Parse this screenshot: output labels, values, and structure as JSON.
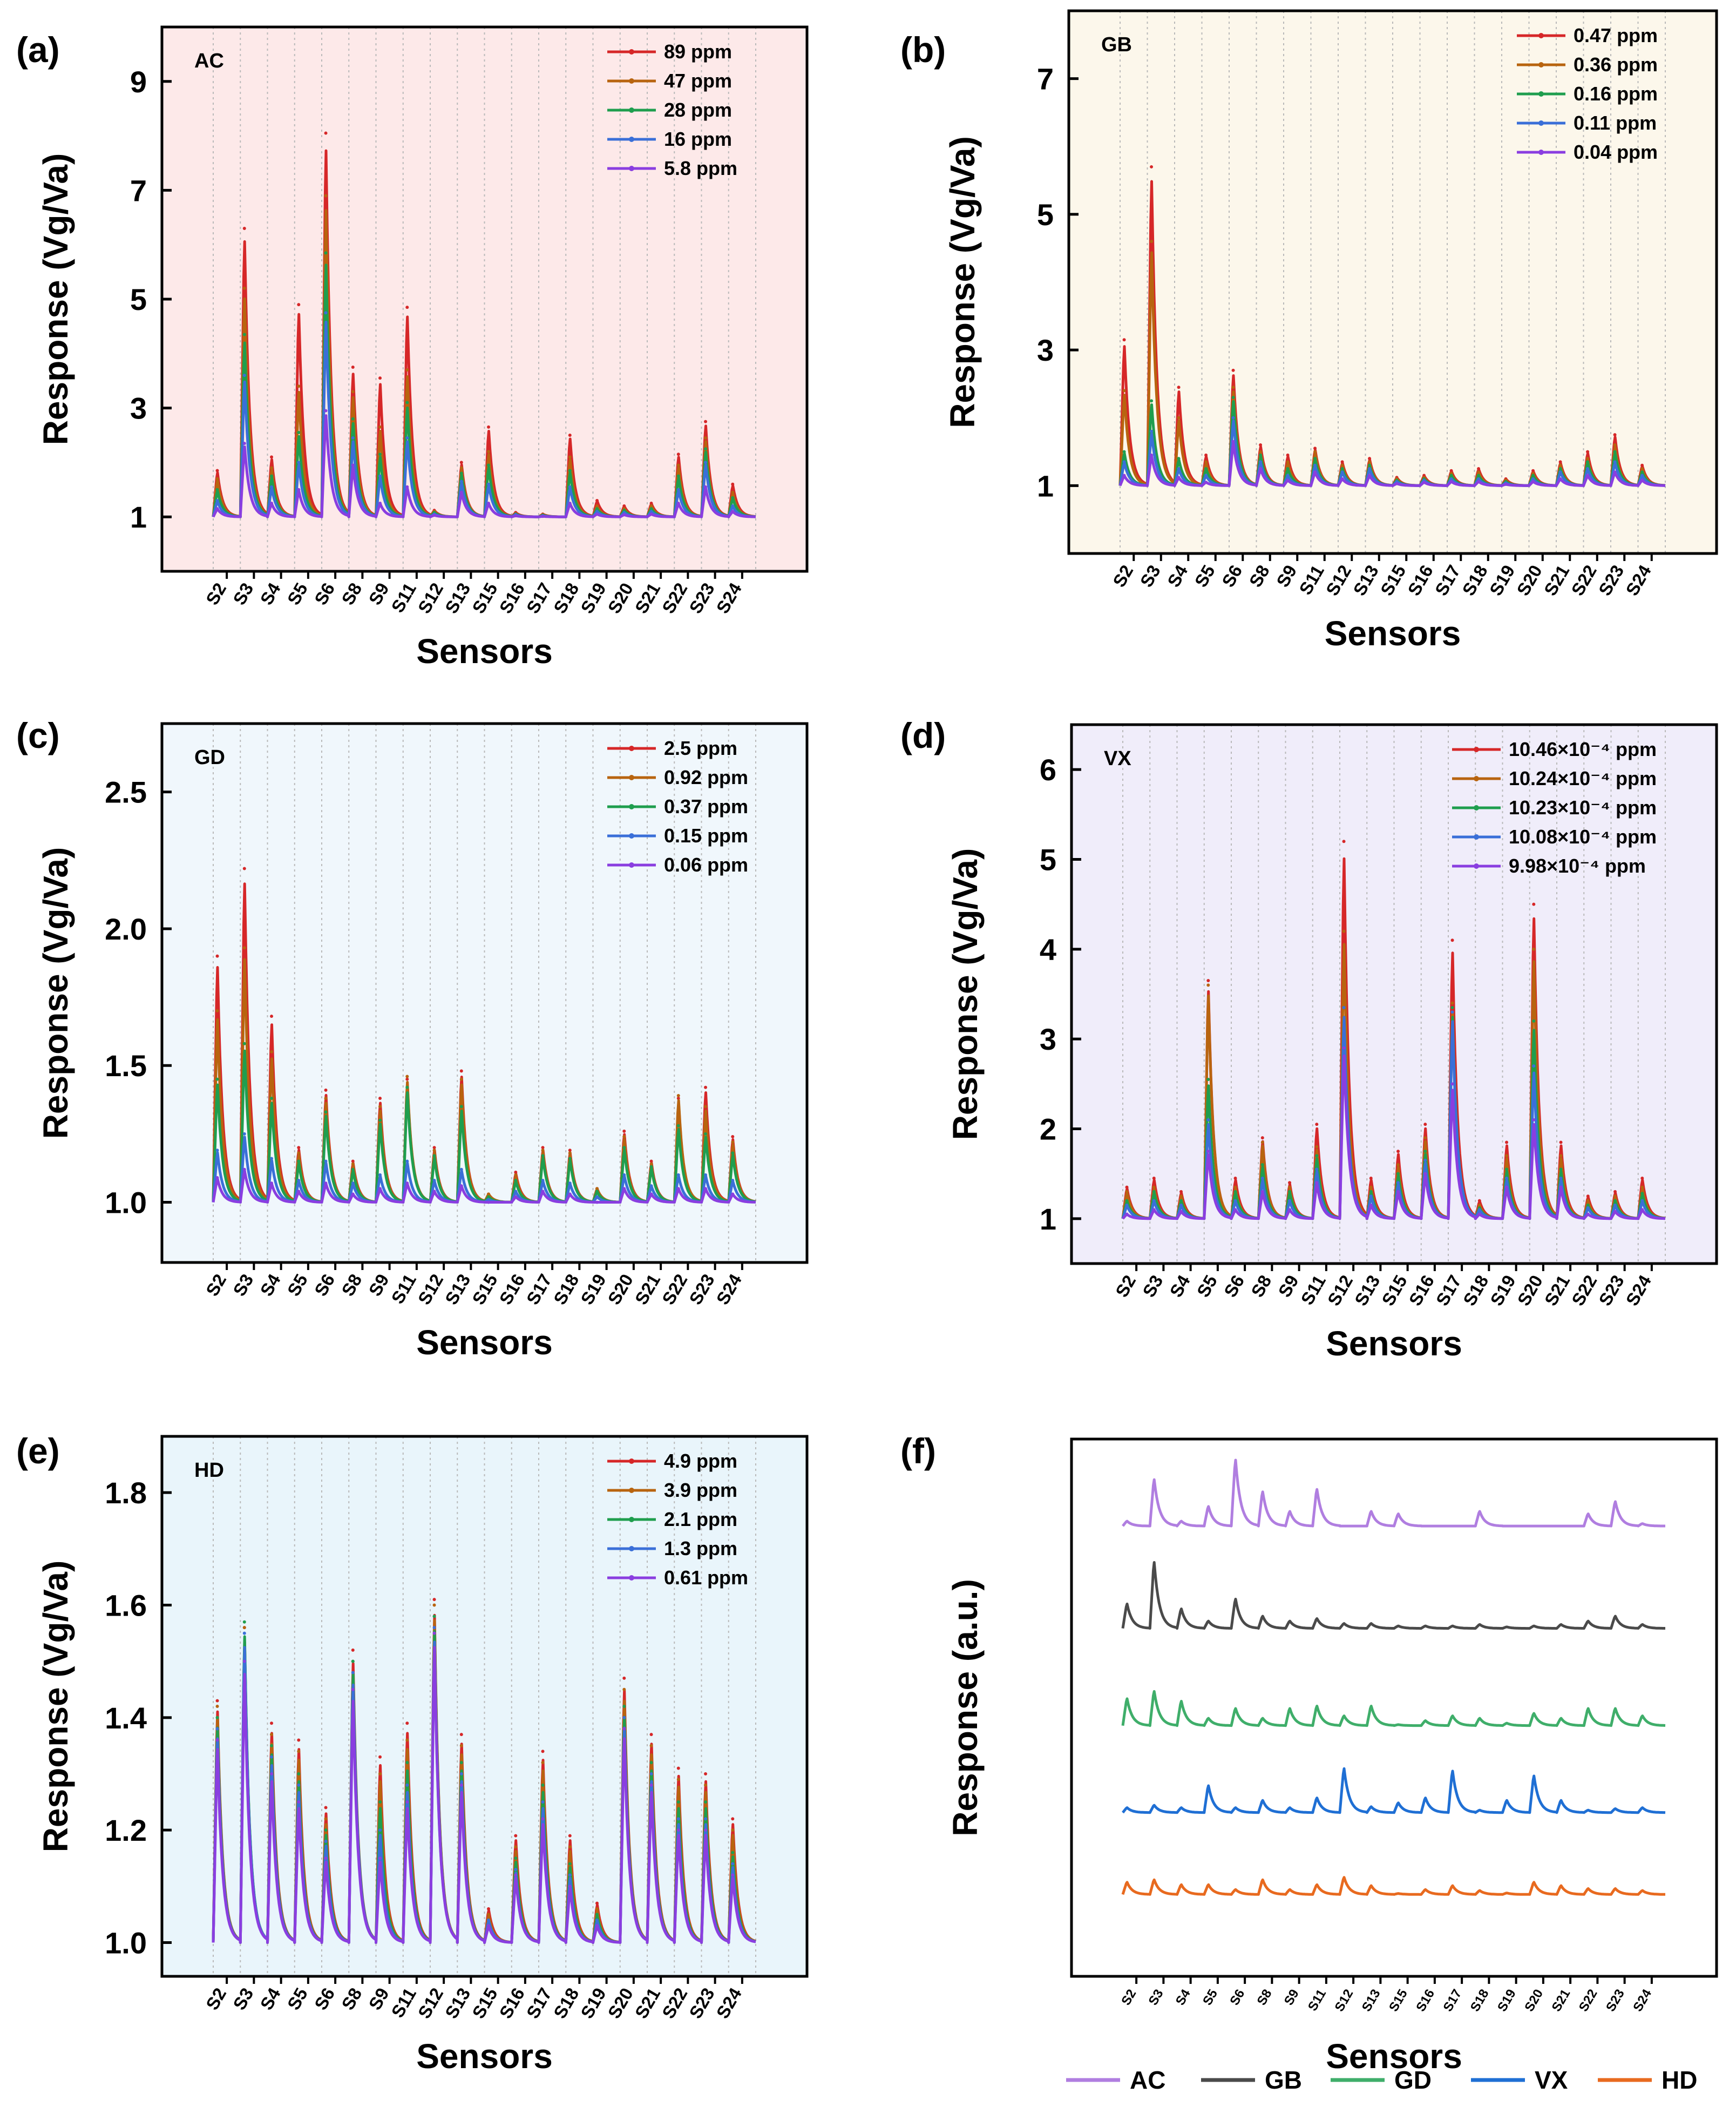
{
  "chart_data": [
    {
      "id": "a",
      "panel_label": "(a)",
      "gas": "AC",
      "type": "line",
      "background": "#fde9e9",
      "ylabel": "Response (Vg/Va)",
      "xlabel": "Sensors",
      "ylim": [
        0,
        10
      ],
      "yticks": [
        1,
        3,
        5,
        7,
        9
      ],
      "categories": [
        "S2",
        "S3",
        "S4",
        "S5",
        "S6",
        "S8",
        "S9",
        "S11",
        "S12",
        "S13",
        "S15",
        "S16",
        "S17",
        "S18",
        "S19",
        "S20",
        "S21",
        "S22",
        "S23",
        "S24"
      ],
      "legend": [
        "89 ppm",
        "47 ppm",
        "28 ppm",
        "16 ppm",
        "5.8 ppm"
      ],
      "series": [
        {
          "name": "89 ppm",
          "color": "#d62728",
          "values": [
            1.85,
            6.3,
            2.1,
            4.9,
            8.05,
            3.75,
            3.55,
            4.85,
            1.12,
            2.0,
            2.65,
            1.08,
            1.05,
            2.5,
            1.3,
            1.2,
            1.25,
            2.15,
            2.75,
            1.6
          ]
        },
        {
          "name": "47 ppm",
          "color": "#b8640f",
          "values": [
            1.7,
            5.2,
            1.9,
            3.4,
            6.9,
            3.3,
            2.65,
            3.7,
            1.1,
            1.9,
            2.2,
            1.06,
            1.04,
            2.1,
            1.2,
            1.15,
            1.2,
            1.95,
            2.45,
            1.45
          ]
        },
        {
          "name": "28 ppm",
          "color": "#1f9e4e",
          "values": [
            1.5,
            4.35,
            1.75,
            2.55,
            5.85,
            2.8,
            2.15,
            3.1,
            1.08,
            1.8,
            1.95,
            1.05,
            1.03,
            1.85,
            1.15,
            1.12,
            1.15,
            1.75,
            2.25,
            1.35
          ]
        },
        {
          "name": "16 ppm",
          "color": "#3a6fd8",
          "values": [
            1.3,
            3.6,
            1.55,
            2.0,
            4.75,
            2.45,
            1.75,
            2.45,
            1.05,
            1.65,
            1.6,
            1.04,
            1.02,
            1.55,
            1.1,
            1.08,
            1.1,
            1.5,
            2.0,
            1.2
          ]
        },
        {
          "name": "5.8 ppm",
          "color": "#8a3ee0",
          "values": [
            1.15,
            2.35,
            1.25,
            1.5,
            2.95,
            1.95,
            1.25,
            1.55,
            1.03,
            1.45,
            1.25,
            1.02,
            1.01,
            1.25,
            1.05,
            1.04,
            1.05,
            1.25,
            1.55,
            1.1
          ]
        }
      ]
    },
    {
      "id": "b",
      "panel_label": "(b)",
      "gas": "GB",
      "type": "line",
      "background": "#fcf7eb",
      "ylabel": "Response (Vg/Va)",
      "xlabel": "Sensors",
      "ylim": [
        0,
        8
      ],
      "yticks": [
        1,
        3,
        5,
        7
      ],
      "categories": [
        "S2",
        "S3",
        "S4",
        "S5",
        "S6",
        "S8",
        "S9",
        "S11",
        "S12",
        "S13",
        "S15",
        "S16",
        "S17",
        "S18",
        "S19",
        "S20",
        "S21",
        "S22",
        "S23",
        "S24"
      ],
      "legend": [
        "0.47 ppm",
        "0.36 ppm",
        "0.16 ppm",
        "0.11 ppm",
        "0.04 ppm"
      ],
      "series": [
        {
          "name": "0.47 ppm",
          "color": "#d62728",
          "values": [
            3.15,
            5.7,
            2.45,
            1.45,
            2.7,
            1.6,
            1.45,
            1.55,
            1.35,
            1.4,
            1.12,
            1.15,
            1.22,
            1.25,
            1.1,
            1.22,
            1.35,
            1.5,
            1.75,
            1.3
          ]
        },
        {
          "name": "0.36 ppm",
          "color": "#b8640f",
          "values": [
            2.4,
            4.6,
            2.0,
            1.35,
            2.45,
            1.5,
            1.35,
            1.5,
            1.3,
            1.35,
            1.1,
            1.12,
            1.18,
            1.2,
            1.08,
            1.18,
            1.3,
            1.4,
            1.6,
            1.25
          ]
        },
        {
          "name": "0.16 ppm",
          "color": "#1f9e4e",
          "values": [
            1.5,
            2.25,
            1.4,
            1.25,
            2.3,
            1.45,
            1.25,
            1.4,
            1.25,
            1.3,
            1.08,
            1.1,
            1.15,
            1.15,
            1.06,
            1.15,
            1.25,
            1.35,
            1.5,
            1.2
          ]
        },
        {
          "name": "0.11 ppm",
          "color": "#3a6fd8",
          "values": [
            1.35,
            1.8,
            1.25,
            1.15,
            2.0,
            1.35,
            1.15,
            1.3,
            1.2,
            1.25,
            1.06,
            1.08,
            1.1,
            1.1,
            1.04,
            1.1,
            1.2,
            1.25,
            1.35,
            1.15
          ]
        },
        {
          "name": "0.04 ppm",
          "color": "#8a3ee0",
          "values": [
            1.15,
            1.45,
            1.12,
            1.05,
            1.65,
            1.25,
            1.08,
            1.2,
            1.1,
            1.15,
            1.03,
            1.05,
            1.06,
            1.06,
            1.02,
            1.06,
            1.1,
            1.15,
            1.2,
            1.08
          ]
        }
      ]
    },
    {
      "id": "c",
      "panel_label": "(c)",
      "gas": "GD",
      "type": "line",
      "background": "#f0f7fc",
      "ylabel": "Response (Vg/Va)",
      "xlabel": "Sensors",
      "ylim": [
        0.78,
        2.75
      ],
      "yticks": [
        1.0,
        1.5,
        2.0,
        2.5
      ],
      "categories": [
        "S2",
        "S3",
        "S4",
        "S5",
        "S6",
        "S8",
        "S9",
        "S11",
        "S12",
        "S13",
        "S15",
        "S16",
        "S17",
        "S18",
        "S19",
        "S20",
        "S21",
        "S22",
        "S23",
        "S24"
      ],
      "legend": [
        "2.5 ppm",
        "0.92 ppm",
        "0.37 ppm",
        "0.15 ppm",
        "0.06 ppm"
      ],
      "series": [
        {
          "name": "2.5 ppm",
          "color": "#d62728",
          "values": [
            1.9,
            2.22,
            1.68,
            1.2,
            1.41,
            1.15,
            1.38,
            1.45,
            1.2,
            1.48,
            1.03,
            1.11,
            1.2,
            1.19,
            1.05,
            1.26,
            1.15,
            1.38,
            1.42,
            1.24
          ]
        },
        {
          "name": "0.92 ppm",
          "color": "#b8640f",
          "values": [
            1.7,
            1.93,
            1.55,
            1.18,
            1.38,
            1.14,
            1.35,
            1.46,
            1.19,
            1.45,
            1.03,
            1.1,
            1.19,
            1.18,
            1.05,
            1.24,
            1.14,
            1.39,
            1.35,
            1.22
          ]
        },
        {
          "name": "0.37 ppm",
          "color": "#1f9e4e",
          "values": [
            1.45,
            1.58,
            1.38,
            1.15,
            1.33,
            1.12,
            1.3,
            1.42,
            1.17,
            1.35,
            1.02,
            1.08,
            1.17,
            1.16,
            1.04,
            1.2,
            1.13,
            1.28,
            1.25,
            1.18
          ]
        },
        {
          "name": "0.15 ppm",
          "color": "#3a6fd8",
          "values": [
            1.19,
            1.25,
            1.16,
            1.08,
            1.15,
            1.07,
            1.1,
            1.15,
            1.08,
            1.12,
            1.01,
            1.04,
            1.08,
            1.07,
            1.02,
            1.1,
            1.06,
            1.1,
            1.1,
            1.08
          ]
        },
        {
          "name": "0.06 ppm",
          "color": "#8a3ee0",
          "values": [
            1.09,
            1.12,
            1.07,
            1.04,
            1.07,
            1.03,
            1.05,
            1.07,
            1.04,
            1.06,
            1.0,
            1.02,
            1.04,
            1.03,
            1.0,
            1.05,
            1.03,
            1.05,
            1.05,
            1.03
          ]
        }
      ]
    },
    {
      "id": "d",
      "panel_label": "(d)",
      "gas": "VX",
      "type": "line",
      "background": "#f0edfa",
      "ylabel": "Response (Vg/Va)",
      "xlabel": "Sensors",
      "ylim": [
        0.5,
        6.5
      ],
      "yticks": [
        1,
        2,
        3,
        4,
        5,
        6
      ],
      "categories": [
        "S2",
        "S3",
        "S4",
        "S5",
        "S6",
        "S8",
        "S9",
        "S11",
        "S12",
        "S13",
        "S15",
        "S16",
        "S17",
        "S18",
        "S19",
        "S20",
        "S21",
        "S22",
        "S23",
        "S24"
      ],
      "legend": [
        "10.46×10⁻⁴ ppm",
        "10.24×10⁻⁴ ppm",
        "10.23×10⁻⁴ ppm",
        "10.08×10⁻⁴ ppm",
        "9.98×10⁻⁴ ppm"
      ],
      "series": [
        {
          "name": "10.46×10⁻⁴ ppm",
          "color": "#d62728",
          "values": [
            1.35,
            1.45,
            1.3,
            3.65,
            1.45,
            1.9,
            1.4,
            2.05,
            5.2,
            1.45,
            1.75,
            2.05,
            4.1,
            1.2,
            1.85,
            4.5,
            1.85,
            1.25,
            1.3,
            1.45
          ]
        },
        {
          "name": "10.24×10⁻⁴ ppm",
          "color": "#b8640f",
          "values": [
            1.3,
            1.35,
            1.25,
            3.6,
            1.35,
            1.85,
            1.35,
            1.8,
            4.2,
            1.35,
            1.6,
            1.9,
            3.4,
            1.15,
            1.7,
            4.0,
            1.7,
            1.2,
            1.25,
            1.35
          ]
        },
        {
          "name": "10.23×10⁻⁴ ppm",
          "color": "#1f9e4e",
          "values": [
            1.2,
            1.3,
            1.2,
            2.55,
            1.3,
            1.6,
            1.3,
            1.7,
            3.35,
            1.3,
            1.5,
            1.75,
            3.35,
            1.12,
            1.55,
            3.2,
            1.55,
            1.15,
            1.2,
            1.28
          ]
        },
        {
          "name": "10.08×10⁻⁴ ppm",
          "color": "#3a6fd8",
          "values": [
            1.15,
            1.2,
            1.15,
            2.1,
            1.2,
            1.45,
            1.2,
            1.55,
            3.35,
            1.25,
            1.4,
            1.65,
            3.3,
            1.1,
            1.45,
            2.7,
            1.45,
            1.12,
            1.15,
            1.2
          ]
        },
        {
          "name": "9.98×10⁻⁴ ppm",
          "color": "#8a3ee0",
          "values": [
            1.05,
            1.1,
            1.08,
            1.75,
            1.1,
            1.3,
            1.1,
            1.4,
            2.9,
            1.15,
            1.3,
            1.5,
            2.5,
            1.05,
            1.35,
            2.1,
            1.35,
            1.05,
            1.08,
            1.1
          ]
        }
      ]
    },
    {
      "id": "e",
      "panel_label": "(e)",
      "gas": "HD",
      "type": "line",
      "background": "#e9f5fb",
      "ylabel": "Response (Vg/Va)",
      "xlabel": "Sensors",
      "ylim": [
        0.94,
        1.9
      ],
      "yticks": [
        1.0,
        1.2,
        1.4,
        1.6,
        1.8
      ],
      "categories": [
        "S2",
        "S3",
        "S4",
        "S5",
        "S6",
        "S8",
        "S9",
        "S11",
        "S12",
        "S13",
        "S15",
        "S16",
        "S17",
        "S18",
        "S19",
        "S20",
        "S21",
        "S22",
        "S23",
        "S24"
      ],
      "legend": [
        "4.9 ppm",
        "3.9 ppm",
        "2.1 ppm",
        "1.3 ppm",
        "0.61 ppm"
      ],
      "series": [
        {
          "name": "4.9 ppm",
          "color": "#d62728",
          "values": [
            1.43,
            1.56,
            1.39,
            1.36,
            1.24,
            1.52,
            1.33,
            1.39,
            1.61,
            1.37,
            1.06,
            1.19,
            1.34,
            1.19,
            1.07,
            1.47,
            1.37,
            1.31,
            1.3,
            1.22
          ]
        },
        {
          "name": "3.9 ppm",
          "color": "#b8640f",
          "values": [
            1.42,
            1.56,
            1.37,
            1.34,
            1.22,
            1.5,
            1.3,
            1.36,
            1.6,
            1.35,
            1.05,
            1.17,
            1.32,
            1.17,
            1.06,
            1.45,
            1.35,
            1.29,
            1.28,
            1.2
          ]
        },
        {
          "name": "2.1 ppm",
          "color": "#1f9e4e",
          "values": [
            1.4,
            1.57,
            1.35,
            1.3,
            1.2,
            1.5,
            1.25,
            1.32,
            1.58,
            1.32,
            1.04,
            1.15,
            1.28,
            1.14,
            1.05,
            1.42,
            1.32,
            1.25,
            1.25,
            1.16
          ]
        },
        {
          "name": "1.3 ppm",
          "color": "#3a6fd8",
          "values": [
            1.38,
            1.55,
            1.33,
            1.28,
            1.18,
            1.48,
            1.2,
            1.28,
            1.56,
            1.3,
            1.04,
            1.13,
            1.25,
            1.12,
            1.04,
            1.4,
            1.3,
            1.22,
            1.22,
            1.14
          ]
        },
        {
          "name": "0.61 ppm",
          "color": "#8a3ee0",
          "values": [
            1.36,
            1.5,
            1.3,
            1.25,
            1.15,
            1.45,
            1.15,
            1.25,
            1.55,
            1.28,
            1.03,
            1.12,
            1.22,
            1.1,
            1.03,
            1.38,
            1.28,
            1.2,
            1.2,
            1.12
          ]
        }
      ]
    },
    {
      "id": "f",
      "panel_label": "(f)",
      "type": "line",
      "ylabel": "Response (a.u.)",
      "xlabel": "Sensors",
      "ylim": [
        0,
        10.5
      ],
      "categories": [
        "S2",
        "S3",
        "S4",
        "S5",
        "S6",
        "S8",
        "S9",
        "S11",
        "S12",
        "S13",
        "S15",
        "S16",
        "S17",
        "S18",
        "S19",
        "S20",
        "S21",
        "S22",
        "S23",
        "S24"
      ],
      "legend": [
        "AC",
        "GB",
        "GD",
        "VX",
        "HD"
      ],
      "series": [
        {
          "name": "AC",
          "color": "#b07ee0",
          "offset": 8.8,
          "values": [
            0.1,
            0.95,
            0.1,
            0.4,
            1.35,
            0.7,
            0.3,
            0.75,
            0,
            0.3,
            0.25,
            0,
            0,
            0.3,
            0,
            0,
            0,
            0.25,
            0.5,
            0.05
          ]
        },
        {
          "name": "GB",
          "color": "#4a4a4a",
          "offset": 6.8,
          "values": [
            0.5,
            1.35,
            0.4,
            0.15,
            0.6,
            0.25,
            0.15,
            0.2,
            0.1,
            0.1,
            0.05,
            0.05,
            0.05,
            0.08,
            0.03,
            0.05,
            0.08,
            0.15,
            0.25,
            0.08
          ]
        },
        {
          "name": "GD",
          "color": "#3fae6a",
          "offset": 4.9,
          "values": [
            0.55,
            0.7,
            0.5,
            0.15,
            0.35,
            0.15,
            0.35,
            0.4,
            0.2,
            0.4,
            0.02,
            0.1,
            0.2,
            0.15,
            0.05,
            0.25,
            0.15,
            0.35,
            0.35,
            0.2
          ]
        },
        {
          "name": "VX",
          "color": "#1f6fd4",
          "offset": 3.2,
          "values": [
            0.1,
            0.15,
            0.1,
            0.55,
            0.1,
            0.25,
            0.1,
            0.3,
            0.9,
            0.12,
            0.2,
            0.3,
            0.85,
            0.05,
            0.25,
            0.75,
            0.25,
            0.05,
            0.08,
            0.1
          ]
        },
        {
          "name": "HD",
          "color": "#e86a1f",
          "offset": 1.6,
          "values": [
            0.25,
            0.3,
            0.2,
            0.2,
            0.1,
            0.3,
            0.1,
            0.2,
            0.35,
            0.18,
            0.02,
            0.1,
            0.18,
            0.08,
            0.03,
            0.25,
            0.18,
            0.12,
            0.12,
            0.08
          ]
        }
      ]
    }
  ]
}
